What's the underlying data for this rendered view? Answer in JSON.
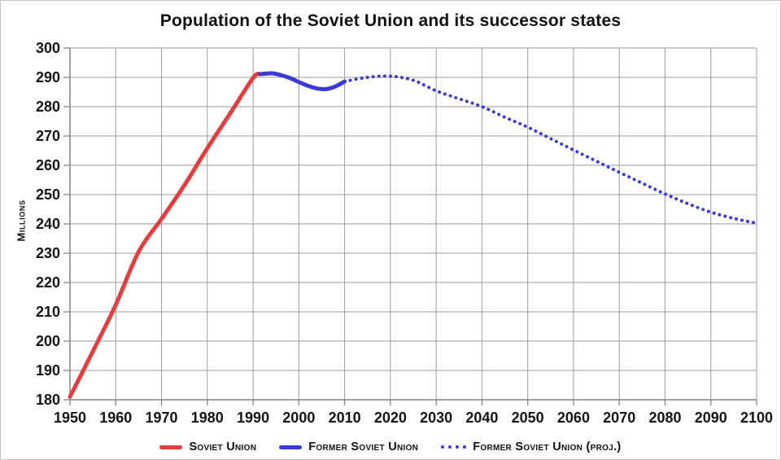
{
  "chart_data": {
    "type": "line",
    "title": "Population of the Soviet Union and its successor states",
    "ylabel": "Millions",
    "xlabel": "",
    "grid": true,
    "legend_position": "bottom",
    "x_axis": {
      "min": 1950,
      "max": 2100,
      "tick_step": 10,
      "ticks": [
        1950,
        1960,
        1970,
        1980,
        1990,
        2000,
        2010,
        2020,
        2030,
        2040,
        2050,
        2060,
        2070,
        2080,
        2090,
        2100
      ]
    },
    "y_axis": {
      "min": 180,
      "max": 300,
      "tick_step": 10,
      "ticks": [
        180,
        190,
        200,
        210,
        220,
        230,
        240,
        250,
        260,
        270,
        280,
        290,
        300
      ]
    },
    "colors": {
      "red": "#e73c3e",
      "blue": "#3b3bd1",
      "grid": "#9b9b9b",
      "axis": "#848484",
      "text": "#141414"
    },
    "series": [
      {
        "name": "Soviet Union",
        "style": "solid",
        "color": "#e73c3e",
        "points": [
          [
            1950,
            181
          ],
          [
            1955,
            196.5
          ],
          [
            1960,
            212.4
          ],
          [
            1965,
            230.5
          ],
          [
            1970,
            241.7
          ],
          [
            1975,
            253.2
          ],
          [
            1980,
            265.8
          ],
          [
            1985,
            277.7
          ],
          [
            1990,
            289.8
          ],
          [
            1991.5,
            291.1
          ]
        ]
      },
      {
        "name": "Former Soviet Union",
        "style": "solid",
        "color": "#3b3bd1",
        "points": [
          [
            1991.5,
            291.1
          ],
          [
            1994,
            291.4
          ],
          [
            1996,
            290.8
          ],
          [
            1998,
            289.8
          ],
          [
            2000,
            288.4
          ],
          [
            2002,
            287.1
          ],
          [
            2004,
            286.2
          ],
          [
            2006,
            286.0
          ],
          [
            2008,
            286.9
          ],
          [
            2010,
            288.6
          ]
        ]
      },
      {
        "name": "Former Soviet Union (proj.)",
        "style": "dotted",
        "color": "#3b3bd1",
        "points": [
          [
            2010,
            288.6
          ],
          [
            2015,
            290.0
          ],
          [
            2020,
            290.4
          ],
          [
            2025,
            289.0
          ],
          [
            2030,
            285.4
          ],
          [
            2035,
            282.7
          ],
          [
            2040,
            280.0
          ],
          [
            2045,
            276.4
          ],
          [
            2050,
            273.0
          ],
          [
            2055,
            269.1
          ],
          [
            2060,
            265.2
          ],
          [
            2065,
            261.4
          ],
          [
            2070,
            257.6
          ],
          [
            2075,
            253.9
          ],
          [
            2080,
            250.2
          ],
          [
            2085,
            246.9
          ],
          [
            2090,
            244.0
          ],
          [
            2095,
            241.9
          ],
          [
            2100,
            240.2
          ]
        ]
      }
    ]
  }
}
